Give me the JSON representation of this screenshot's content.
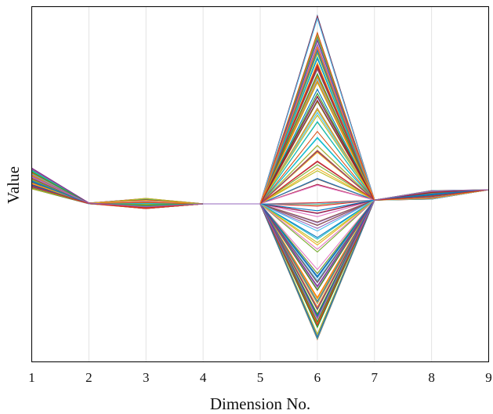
{
  "chart_data": {
    "type": "line",
    "subtype": "parallel-coordinates",
    "title": "",
    "xlabel": "Dimension No.",
    "ylabel": "Value",
    "x": [
      1,
      2,
      3,
      4,
      5,
      6,
      7,
      8,
      9
    ],
    "xlim": [
      1,
      9
    ],
    "ylim": [
      -1.0,
      1.0
    ],
    "y_ticks_shown": false,
    "grid": "vertical",
    "legend": "none",
    "series_count": 140,
    "series_color_note": "many distinct colors, one per line",
    "value_envelope": {
      "dimension_1": [
        0.08,
        0.19
      ],
      "dimension_2": [
        0.0,
        0.005
      ],
      "dimension_3": [
        -0.025,
        0.03
      ],
      "dimension_4": [
        0.0,
        0.0
      ],
      "dimension_5": [
        0.0,
        0.0
      ],
      "dimension_6": [
        -0.72,
        1.0
      ],
      "dimension_7": [
        0.02,
        0.02
      ],
      "dimension_8": [
        0.025,
        0.07
      ],
      "dimension_9": [
        0.075,
        0.075
      ]
    }
  },
  "colors": {
    "palette": [
      "#0072BD",
      "#D95319",
      "#EDB120",
      "#7E2F8E",
      "#77AC30",
      "#4DBEEE",
      "#A2142F",
      "#1f77b4",
      "#ff7f0e",
      "#2ca02c",
      "#d62728",
      "#9467bd",
      "#8c564b",
      "#e377c2",
      "#17becf",
      "#bcbd22"
    ],
    "axis": "#000000",
    "grid": "#e3e3e3"
  }
}
